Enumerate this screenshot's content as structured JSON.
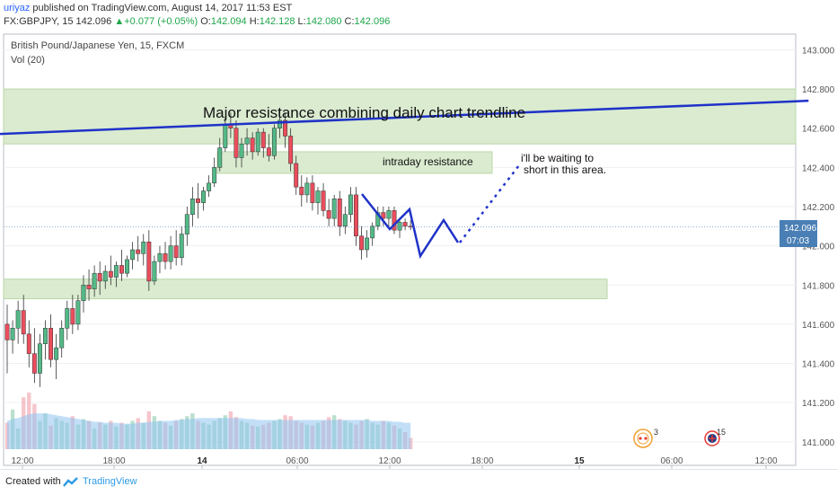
{
  "header": {
    "author": "uriyaz",
    "published": "published on TradingView.com, August 14, 2017 11:53 EST",
    "symbol": "FX:GBPJPY, 15",
    "last": "142.096",
    "arrow": "▲",
    "change": "+0.077 (+0.05%)",
    "o_label": "O:",
    "o": "142.094",
    "h_label": "H:",
    "h": "142.128",
    "l_label": "L:",
    "l": "142.080",
    "c_label": "C:",
    "c": "142.096"
  },
  "legend": {
    "title": "British Pound/Japanese Yen, 15, FXCM",
    "vol": "Vol (20)"
  },
  "annotations": {
    "major": "Major resistance combining daily chart trendline",
    "intraday": "intraday resistance",
    "note_line1": "i'll be waiting to",
    "note_line2": "short in this area."
  },
  "price_tag": {
    "value": "142.096",
    "countdown": "07:03"
  },
  "events": {
    "earnings_count": "3",
    "uk_count": "15"
  },
  "footer": {
    "created": "Created with",
    "brand": "TradingView"
  },
  "colors": {
    "up": "#53b987",
    "down": "#eb4d5c",
    "trend": "#1f32c8",
    "zone": "#d4e8c8",
    "vol": "#8fc4f0",
    "price_tag": "#4a7fb5"
  },
  "chart_data": {
    "type": "candlestick",
    "title": "British Pound/Japanese Yen, 15, FXCM",
    "ylim": [
      140.88,
      143.08
    ],
    "y_ticks": [
      143.0,
      142.8,
      142.6,
      142.4,
      142.2,
      142.0,
      141.8,
      141.6,
      141.4,
      141.2,
      141.0
    ],
    "y_tick_labels": [
      "143.000",
      "142.800",
      "142.600",
      "142.400",
      "142.200",
      "142.000",
      "141.800",
      "141.600",
      "141.400",
      "141.200",
      "141.000"
    ],
    "x_tick_labels": [
      "12:00",
      "18:00",
      "14",
      "06:00",
      "12:00",
      "18:00",
      "15",
      "06:00",
      "12:00"
    ],
    "last_price": 142.096,
    "candles": [
      {
        "o": 141.6,
        "h": 141.7,
        "l": 141.35,
        "c": 141.52
      },
      {
        "o": 141.52,
        "h": 141.62,
        "l": 141.45,
        "c": 141.58
      },
      {
        "o": 141.58,
        "h": 141.72,
        "l": 141.5,
        "c": 141.67
      },
      {
        "o": 141.67,
        "h": 141.75,
        "l": 141.5,
        "c": 141.55
      },
      {
        "o": 141.55,
        "h": 141.62,
        "l": 141.38,
        "c": 141.45
      },
      {
        "o": 141.45,
        "h": 141.58,
        "l": 141.3,
        "c": 141.35
      },
      {
        "o": 141.35,
        "h": 141.55,
        "l": 141.28,
        "c": 141.5
      },
      {
        "o": 141.5,
        "h": 141.62,
        "l": 141.42,
        "c": 141.58
      },
      {
        "o": 141.58,
        "h": 141.65,
        "l": 141.38,
        "c": 141.42
      },
      {
        "o": 141.42,
        "h": 141.55,
        "l": 141.32,
        "c": 141.48
      },
      {
        "o": 141.48,
        "h": 141.62,
        "l": 141.43,
        "c": 141.58
      },
      {
        "o": 141.58,
        "h": 141.72,
        "l": 141.52,
        "c": 141.68
      },
      {
        "o": 141.68,
        "h": 141.75,
        "l": 141.55,
        "c": 141.6
      },
      {
        "o": 141.6,
        "h": 141.75,
        "l": 141.57,
        "c": 141.72
      },
      {
        "o": 141.72,
        "h": 141.85,
        "l": 141.66,
        "c": 141.8
      },
      {
        "o": 141.8,
        "h": 141.88,
        "l": 141.72,
        "c": 141.78
      },
      {
        "o": 141.78,
        "h": 141.9,
        "l": 141.74,
        "c": 141.86
      },
      {
        "o": 141.86,
        "h": 141.92,
        "l": 141.75,
        "c": 141.82
      },
      {
        "o": 141.82,
        "h": 141.9,
        "l": 141.78,
        "c": 141.87
      },
      {
        "o": 141.87,
        "h": 141.95,
        "l": 141.8,
        "c": 141.84
      },
      {
        "o": 141.84,
        "h": 141.92,
        "l": 141.79,
        "c": 141.9
      },
      {
        "o": 141.9,
        "h": 141.98,
        "l": 141.82,
        "c": 141.86
      },
      {
        "o": 141.86,
        "h": 141.95,
        "l": 141.84,
        "c": 141.93
      },
      {
        "o": 141.93,
        "h": 142.02,
        "l": 141.88,
        "c": 141.98
      },
      {
        "o": 141.98,
        "h": 142.05,
        "l": 141.92,
        "c": 141.96
      },
      {
        "o": 141.96,
        "h": 142.06,
        "l": 141.9,
        "c": 142.02
      },
      {
        "o": 142.02,
        "h": 142.08,
        "l": 141.77,
        "c": 141.82
      },
      {
        "o": 141.82,
        "h": 141.95,
        "l": 141.8,
        "c": 141.92
      },
      {
        "o": 141.92,
        "h": 142.0,
        "l": 141.86,
        "c": 141.96
      },
      {
        "o": 141.96,
        "h": 142.02,
        "l": 141.88,
        "c": 141.92
      },
      {
        "o": 141.92,
        "h": 142.05,
        "l": 141.88,
        "c": 142.0
      },
      {
        "o": 142.0,
        "h": 142.08,
        "l": 141.9,
        "c": 141.94
      },
      {
        "o": 141.94,
        "h": 142.1,
        "l": 141.9,
        "c": 142.06
      },
      {
        "o": 142.06,
        "h": 142.2,
        "l": 142.0,
        "c": 142.16
      },
      {
        "o": 142.16,
        "h": 142.3,
        "l": 142.1,
        "c": 142.24
      },
      {
        "o": 142.24,
        "h": 142.32,
        "l": 142.14,
        "c": 142.22
      },
      {
        "o": 142.22,
        "h": 142.3,
        "l": 142.18,
        "c": 142.28
      },
      {
        "o": 142.28,
        "h": 142.36,
        "l": 142.25,
        "c": 142.32
      },
      {
        "o": 142.32,
        "h": 142.45,
        "l": 142.3,
        "c": 142.4
      },
      {
        "o": 142.4,
        "h": 142.55,
        "l": 142.38,
        "c": 142.5
      },
      {
        "o": 142.5,
        "h": 142.66,
        "l": 142.48,
        "c": 142.62
      },
      {
        "o": 142.62,
        "h": 142.68,
        "l": 142.55,
        "c": 142.6
      },
      {
        "o": 142.6,
        "h": 142.64,
        "l": 142.4,
        "c": 142.45
      },
      {
        "o": 142.45,
        "h": 142.55,
        "l": 142.4,
        "c": 142.52
      },
      {
        "o": 142.52,
        "h": 142.6,
        "l": 142.46,
        "c": 142.55
      },
      {
        "o": 142.55,
        "h": 142.58,
        "l": 142.44,
        "c": 142.48
      },
      {
        "o": 142.48,
        "h": 142.6,
        "l": 142.46,
        "c": 142.58
      },
      {
        "o": 142.58,
        "h": 142.6,
        "l": 142.45,
        "c": 142.5
      },
      {
        "o": 142.5,
        "h": 142.57,
        "l": 142.43,
        "c": 142.46
      },
      {
        "o": 142.46,
        "h": 142.62,
        "l": 142.44,
        "c": 142.6
      },
      {
        "o": 142.6,
        "h": 142.7,
        "l": 142.55,
        "c": 142.64
      },
      {
        "o": 142.64,
        "h": 142.68,
        "l": 142.5,
        "c": 142.56
      },
      {
        "o": 142.56,
        "h": 142.6,
        "l": 142.38,
        "c": 142.42
      },
      {
        "o": 142.42,
        "h": 142.46,
        "l": 142.26,
        "c": 142.3
      },
      {
        "o": 142.3,
        "h": 142.36,
        "l": 142.2,
        "c": 142.26
      },
      {
        "o": 142.26,
        "h": 142.35,
        "l": 142.22,
        "c": 142.32
      },
      {
        "o": 142.32,
        "h": 142.36,
        "l": 142.18,
        "c": 142.22
      },
      {
        "o": 142.22,
        "h": 142.3,
        "l": 142.16,
        "c": 142.28
      },
      {
        "o": 142.28,
        "h": 142.32,
        "l": 142.15,
        "c": 142.18
      },
      {
        "o": 142.18,
        "h": 142.24,
        "l": 142.1,
        "c": 142.14
      },
      {
        "o": 142.14,
        "h": 142.26,
        "l": 142.1,
        "c": 142.24
      },
      {
        "o": 142.24,
        "h": 142.28,
        "l": 142.05,
        "c": 142.1
      },
      {
        "o": 142.1,
        "h": 142.2,
        "l": 142.06,
        "c": 142.16
      },
      {
        "o": 142.16,
        "h": 142.3,
        "l": 142.12,
        "c": 142.26
      },
      {
        "o": 142.26,
        "h": 142.3,
        "l": 142.0,
        "c": 142.05
      },
      {
        "o": 142.05,
        "h": 142.1,
        "l": 141.93,
        "c": 141.98
      },
      {
        "o": 141.98,
        "h": 142.08,
        "l": 141.94,
        "c": 142.04
      },
      {
        "o": 142.04,
        "h": 142.12,
        "l": 142.0,
        "c": 142.1
      },
      {
        "o": 142.1,
        "h": 142.2,
        "l": 142.08,
        "c": 142.17
      },
      {
        "o": 142.17,
        "h": 142.2,
        "l": 142.1,
        "c": 142.14
      },
      {
        "o": 142.14,
        "h": 142.2,
        "l": 142.1,
        "c": 142.18
      },
      {
        "o": 142.18,
        "h": 142.2,
        "l": 142.06,
        "c": 142.08
      },
      {
        "o": 142.08,
        "h": 142.14,
        "l": 142.04,
        "c": 142.12
      },
      {
        "o": 142.12,
        "h": 142.14,
        "l": 142.08,
        "c": 142.1
      },
      {
        "o": 142.1,
        "h": 142.13,
        "l": 142.08,
        "c": 142.096
      }
    ],
    "volume": [
      28,
      42,
      22,
      55,
      60,
      48,
      30,
      38,
      25,
      33,
      30,
      28,
      35,
      26,
      32,
      30,
      22,
      28,
      26,
      30,
      24,
      28,
      26,
      30,
      33,
      28,
      40,
      35,
      30,
      28,
      25,
      30,
      32,
      35,
      38,
      30,
      28,
      26,
      30,
      33,
      36,
      40,
      34,
      30,
      28,
      25,
      24,
      26,
      28,
      30,
      32,
      36,
      35,
      30,
      28,
      26,
      25,
      28,
      30,
      34,
      36,
      32,
      30,
      28,
      26,
      30,
      32,
      28,
      26,
      30,
      28,
      25,
      22,
      18,
      12
    ],
    "volume_ma": [
      30,
      32,
      33,
      35,
      37,
      38,
      38,
      38,
      37,
      36,
      35,
      34,
      33,
      32,
      31,
      30,
      29,
      29,
      28,
      28,
      28,
      27,
      27,
      27,
      28,
      28,
      29,
      29,
      30,
      30,
      30,
      31,
      31,
      32,
      32,
      33,
      33,
      33,
      33,
      33,
      33,
      33,
      33,
      33,
      32,
      32,
      31,
      31,
      31,
      31,
      31,
      31,
      31,
      31,
      31,
      31,
      31,
      31,
      31,
      31,
      31,
      31,
      31,
      31,
      31,
      31,
      31,
      30,
      30,
      30,
      30,
      29,
      29,
      28,
      28
    ],
    "zones": [
      {
        "name": "major resistance",
        "from": 142.52,
        "to": 142.8
      },
      {
        "name": "intraday resistance",
        "from": 142.37,
        "to": 142.48
      },
      {
        "name": "support",
        "from": 141.73,
        "to": 141.83
      }
    ],
    "trendline": {
      "from_bar": -2,
      "from_price": 142.57,
      "to_bar": 147,
      "to_price": 142.74
    }
  }
}
